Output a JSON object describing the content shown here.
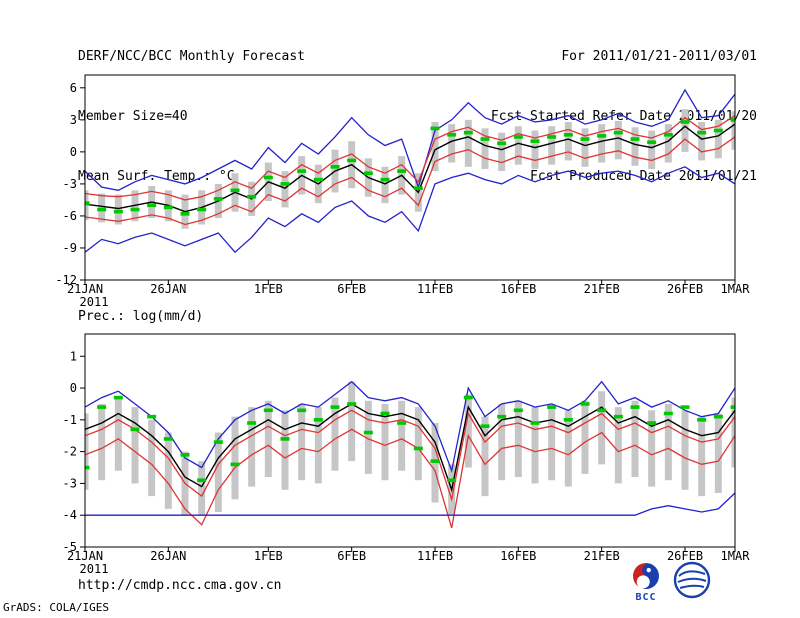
{
  "header": {
    "left": [
      "DERF/NCC/BCC Monthly Forecast",
      "Member Size=40",
      "Mean Surf. Temp.: °C"
    ],
    "right": [
      "For 2011/01/21-2011/03/01",
      "Fcst Started Refer Date 2011/01/20",
      "Fcst Produced Date 2011/01/21"
    ]
  },
  "footer": {
    "url": "http://cmdp.ncc.cma.gov.cn",
    "credit": "GrADS: COLA/IGES",
    "bcc_label": "BCC"
  },
  "colors": {
    "blue": "#2222cc",
    "red": "#e03434",
    "green": "#00c800",
    "black": "#000000",
    "gray": "#c6c6c6"
  },
  "chart_data": [
    {
      "type": "line",
      "title": "Mean Surf. Temp.: °C",
      "ylim": [
        -12,
        7.2
      ],
      "yticks": [
        6,
        3,
        0,
        -3,
        -6,
        -9,
        -12
      ],
      "days": 40,
      "year_label": "2011",
      "x_ticks": [
        {
          "label": "21JAN",
          "day": 0
        },
        {
          "label": "26JAN",
          "day": 5
        },
        {
          "label": "1FEB",
          "day": 11
        },
        {
          "label": "6FEB",
          "day": 16
        },
        {
          "label": "11FEB",
          "day": 21
        },
        {
          "label": "16FEB",
          "day": 26
        },
        {
          "label": "21FEB",
          "day": 31
        },
        {
          "label": "26FEB",
          "day": 36
        },
        {
          "label": "1MAR",
          "day": 39
        }
      ],
      "bars": {
        "high": [
          -3.6,
          -3.9,
          -4.0,
          -3.6,
          -3.2,
          -3.6,
          -4.0,
          -3.6,
          -3.0,
          -2.0,
          -2.8,
          -1.0,
          -1.8,
          -0.4,
          -1.2,
          0.2,
          1.0,
          -0.6,
          -1.4,
          -0.4,
          -2.0,
          2.8,
          2.6,
          3.0,
          2.2,
          1.8,
          2.4,
          2.0,
          2.4,
          2.8,
          2.2,
          2.6,
          2.9,
          2.3,
          2.0,
          2.6,
          4.0,
          2.8,
          3.0,
          3.8
        ],
        "low": [
          -6.4,
          -6.6,
          -6.8,
          -6.5,
          -6.2,
          -6.5,
          -7.2,
          -6.8,
          -6.2,
          -5.6,
          -6.0,
          -4.6,
          -5.2,
          -4.0,
          -4.8,
          -3.8,
          -3.4,
          -4.2,
          -4.8,
          -4.0,
          -5.6,
          -1.8,
          -1.0,
          -1.4,
          -1.6,
          -1.8,
          -1.2,
          -1.6,
          -1.2,
          -0.8,
          -1.4,
          -1.0,
          -0.7,
          -1.3,
          -1.6,
          -1.0,
          0.0,
          -0.8,
          -0.6,
          0.2
        ]
      },
      "series": [
        {
          "name": "ensemble-max",
          "color_key": "blue",
          "values": [
            -1.8,
            -3.3,
            -3.6,
            -2.8,
            -2.2,
            -2.6,
            -3.0,
            -2.4,
            -1.6,
            -0.8,
            -1.6,
            0.4,
            -1.0,
            0.8,
            -0.2,
            1.4,
            3.2,
            1.6,
            0.6,
            1.2,
            -3.3,
            2.0,
            3.0,
            4.6,
            3.2,
            2.6,
            3.4,
            2.8,
            3.0,
            3.4,
            2.6,
            3.0,
            3.6,
            2.8,
            2.4,
            3.0,
            5.8,
            3.2,
            3.4,
            5.4
          ]
        },
        {
          "name": "upper-bound",
          "color_key": "red",
          "values": [
            -3.9,
            -4.1,
            -4.2,
            -4.0,
            -3.7,
            -4.0,
            -4.5,
            -4.2,
            -3.6,
            -2.8,
            -3.4,
            -1.8,
            -2.4,
            -1.2,
            -2.0,
            -0.8,
            -0.2,
            -1.4,
            -2.0,
            -1.2,
            -2.8,
            1.2,
            1.9,
            2.3,
            1.5,
            1.1,
            1.7,
            1.3,
            1.7,
            2.1,
            1.5,
            1.9,
            2.2,
            1.6,
            1.3,
            1.9,
            3.2,
            2.1,
            2.4,
            3.4
          ]
        },
        {
          "name": "ensemble-mean",
          "color_key": "black",
          "values": [
            -4.9,
            -5.1,
            -5.3,
            -5.0,
            -4.7,
            -5.0,
            -5.6,
            -5.2,
            -4.6,
            -3.8,
            -4.4,
            -2.8,
            -3.4,
            -2.2,
            -3.0,
            -1.8,
            -1.2,
            -2.4,
            -3.0,
            -2.2,
            -3.8,
            0.2,
            1.0,
            1.4,
            0.6,
            0.2,
            0.8,
            0.4,
            0.8,
            1.2,
            0.6,
            1.0,
            1.3,
            0.7,
            0.4,
            1.0,
            2.4,
            1.2,
            1.5,
            2.6
          ]
        },
        {
          "name": "lower-bound",
          "color_key": "red",
          "values": [
            -6.1,
            -6.3,
            -6.5,
            -6.2,
            -5.9,
            -6.2,
            -6.8,
            -6.4,
            -5.8,
            -5.0,
            -5.6,
            -4.0,
            -4.6,
            -3.4,
            -4.2,
            -3.0,
            -2.4,
            -3.6,
            -4.2,
            -3.4,
            -5.0,
            -0.9,
            -0.2,
            0.2,
            -0.6,
            -1.0,
            -0.4,
            -0.8,
            -0.4,
            0.0,
            -0.6,
            -0.2,
            0.1,
            -0.5,
            -0.8,
            -0.2,
            1.2,
            0.0,
            0.3,
            1.4
          ]
        },
        {
          "name": "ensemble-min",
          "color_key": "blue",
          "values": [
            -9.4,
            -8.2,
            -8.6,
            -8.0,
            -7.6,
            -8.2,
            -8.8,
            -8.2,
            -7.6,
            -9.4,
            -8.0,
            -6.2,
            -7.0,
            -5.8,
            -6.6,
            -5.2,
            -4.6,
            -6.0,
            -6.6,
            -5.6,
            -7.4,
            -3.0,
            -2.4,
            -2.0,
            -2.6,
            -3.0,
            -2.2,
            -2.8,
            -2.2,
            -1.8,
            -2.4,
            -2.0,
            -1.8,
            -2.2,
            -2.8,
            -2.0,
            -1.4,
            -2.4,
            -2.0,
            -3.0
          ]
        }
      ],
      "markers": {
        "name": "observation",
        "color_key": "green",
        "values": [
          -4.8,
          -5.4,
          -5.6,
          -5.4,
          -5.0,
          -5.2,
          -5.8,
          -5.4,
          -4.4,
          -3.6,
          -4.2,
          -2.4,
          -3.0,
          -1.8,
          -2.6,
          -1.4,
          -0.8,
          -2.0,
          -2.6,
          -1.8,
          -3.4,
          2.2,
          1.6,
          1.8,
          1.2,
          0.8,
          1.4,
          1.0,
          1.4,
          1.6,
          1.2,
          1.5,
          1.8,
          1.2,
          0.9,
          1.6,
          2.8,
          1.8,
          2.0,
          3.0
        ]
      }
    },
    {
      "type": "line",
      "title": "Prec.: log(mm/d)",
      "ylim": [
        -5,
        1.7
      ],
      "yticks": [
        1,
        0,
        -1,
        -2,
        -3,
        -4,
        -5
      ],
      "days": 40,
      "year_label": "2011",
      "x_ticks": [
        {
          "label": "21JAN",
          "day": 0
        },
        {
          "label": "26JAN",
          "day": 5
        },
        {
          "label": "1FEB",
          "day": 11
        },
        {
          "label": "6FEB",
          "day": 16
        },
        {
          "label": "11FEB",
          "day": 21
        },
        {
          "label": "16FEB",
          "day": 26
        },
        {
          "label": "21FEB",
          "day": 31
        },
        {
          "label": "26FEB",
          "day": 36
        },
        {
          "label": "1MAR",
          "day": 39
        }
      ],
      "bars": {
        "high": [
          -0.8,
          -0.5,
          -0.3,
          -0.6,
          -1.0,
          -1.4,
          -2.0,
          -2.3,
          -1.4,
          -0.9,
          -0.6,
          -0.4,
          -0.7,
          -0.5,
          -0.6,
          -0.3,
          0.2,
          -0.4,
          -0.5,
          -0.4,
          -0.6,
          -1.1,
          -2.4,
          -0.2,
          -0.9,
          -0.5,
          -0.4,
          -0.6,
          -0.5,
          -0.7,
          -0.4,
          -0.1,
          -0.6,
          -0.4,
          -0.7,
          -0.5,
          -0.7,
          -0.9,
          -0.8,
          -0.3
        ],
        "low": [
          -3.2,
          -2.9,
          -2.6,
          -3.0,
          -3.4,
          -3.8,
          -4.0,
          -4.0,
          -3.9,
          -3.5,
          -3.1,
          -2.8,
          -3.2,
          -2.9,
          -3.0,
          -2.6,
          -2.3,
          -2.7,
          -2.9,
          -2.6,
          -2.9,
          -3.6,
          -4.0,
          -2.5,
          -3.4,
          -2.9,
          -2.8,
          -3.0,
          -2.9,
          -3.1,
          -2.7,
          -2.4,
          -3.0,
          -2.8,
          -3.1,
          -2.9,
          -3.2,
          -3.4,
          -3.3,
          -2.5
        ]
      },
      "series": [
        {
          "name": "ensemble-max",
          "color_key": "blue",
          "values": [
            -0.6,
            -0.3,
            -0.1,
            -0.5,
            -0.9,
            -1.4,
            -2.2,
            -2.5,
            -1.6,
            -1.0,
            -0.7,
            -0.5,
            -0.8,
            -0.5,
            -0.6,
            -0.2,
            0.2,
            -0.3,
            -0.4,
            -0.3,
            -0.5,
            -1.2,
            -2.6,
            0.0,
            -0.9,
            -0.5,
            -0.4,
            -0.6,
            -0.5,
            -0.7,
            -0.4,
            0.2,
            -0.5,
            -0.3,
            -0.6,
            -0.4,
            -0.7,
            -0.9,
            -0.8,
            0.0
          ]
        },
        {
          "name": "ensemble-mean",
          "color_key": "black",
          "values": [
            -1.3,
            -1.1,
            -0.8,
            -1.1,
            -1.5,
            -2.0,
            -2.8,
            -3.1,
            -2.2,
            -1.6,
            -1.3,
            -1.0,
            -1.3,
            -1.1,
            -1.2,
            -0.8,
            -0.5,
            -0.8,
            -0.9,
            -0.8,
            -1.0,
            -1.7,
            -3.2,
            -0.6,
            -1.5,
            -1.0,
            -0.9,
            -1.1,
            -1.0,
            -1.2,
            -0.9,
            -0.6,
            -1.1,
            -0.9,
            -1.2,
            -1.0,
            -1.3,
            -1.5,
            -1.4,
            -0.7
          ]
        },
        {
          "name": "upper-bound",
          "color_key": "red",
          "values": [
            -1.5,
            -1.3,
            -1.0,
            -1.3,
            -1.7,
            -2.2,
            -3.0,
            -3.4,
            -2.4,
            -1.8,
            -1.5,
            -1.2,
            -1.5,
            -1.3,
            -1.4,
            -1.0,
            -0.7,
            -1.0,
            -1.1,
            -1.0,
            -1.2,
            -1.9,
            -3.5,
            -0.8,
            -1.7,
            -1.2,
            -1.1,
            -1.3,
            -1.2,
            -1.4,
            -1.1,
            -0.8,
            -1.3,
            -1.1,
            -1.4,
            -1.2,
            -1.5,
            -1.7,
            -1.6,
            -0.9
          ]
        },
        {
          "name": "lower-bound",
          "color_key": "red",
          "values": [
            -2.1,
            -1.9,
            -1.6,
            -2.0,
            -2.4,
            -3.0,
            -3.8,
            -4.3,
            -3.2,
            -2.5,
            -2.1,
            -1.8,
            -2.2,
            -1.9,
            -2.0,
            -1.6,
            -1.3,
            -1.6,
            -1.8,
            -1.6,
            -1.9,
            -2.6,
            -4.4,
            -1.5,
            -2.4,
            -1.9,
            -1.8,
            -2.0,
            -1.9,
            -2.1,
            -1.7,
            -1.4,
            -2.0,
            -1.8,
            -2.1,
            -1.9,
            -2.2,
            -2.4,
            -2.3,
            -1.5
          ]
        },
        {
          "name": "ensemble-min",
          "color_key": "blue",
          "values": [
            -4,
            -4,
            -4,
            -4,
            -4,
            -4,
            -4,
            -4,
            -4,
            -4,
            -4,
            -4,
            -4,
            -4,
            -4,
            -4,
            -4,
            -4,
            -4,
            -4,
            -4,
            -4,
            -4,
            -4,
            -4,
            -4,
            -4,
            -4,
            -4,
            -4,
            -4,
            -4,
            -4,
            -4,
            -3.8,
            -3.7,
            -3.8,
            -3.9,
            -3.8,
            -3.3
          ]
        }
      ],
      "markers": {
        "name": "observation",
        "color_key": "green",
        "values": [
          -2.5,
          -0.6,
          -0.3,
          -1.3,
          -0.9,
          -1.6,
          -2.1,
          -2.9,
          -1.7,
          -2.4,
          -1.1,
          -0.7,
          -1.6,
          -0.7,
          -1.0,
          -0.6,
          -0.5,
          -1.4,
          -0.8,
          -1.1,
          -1.9,
          -2.3,
          -2.9,
          -0.3,
          -1.2,
          -0.9,
          -0.7,
          -1.1,
          -0.6,
          -1.0,
          -0.5,
          -0.7,
          -0.9,
          -0.6,
          -1.1,
          -0.8,
          -0.6,
          -1.0,
          -0.9,
          -0.6
        ]
      }
    }
  ]
}
